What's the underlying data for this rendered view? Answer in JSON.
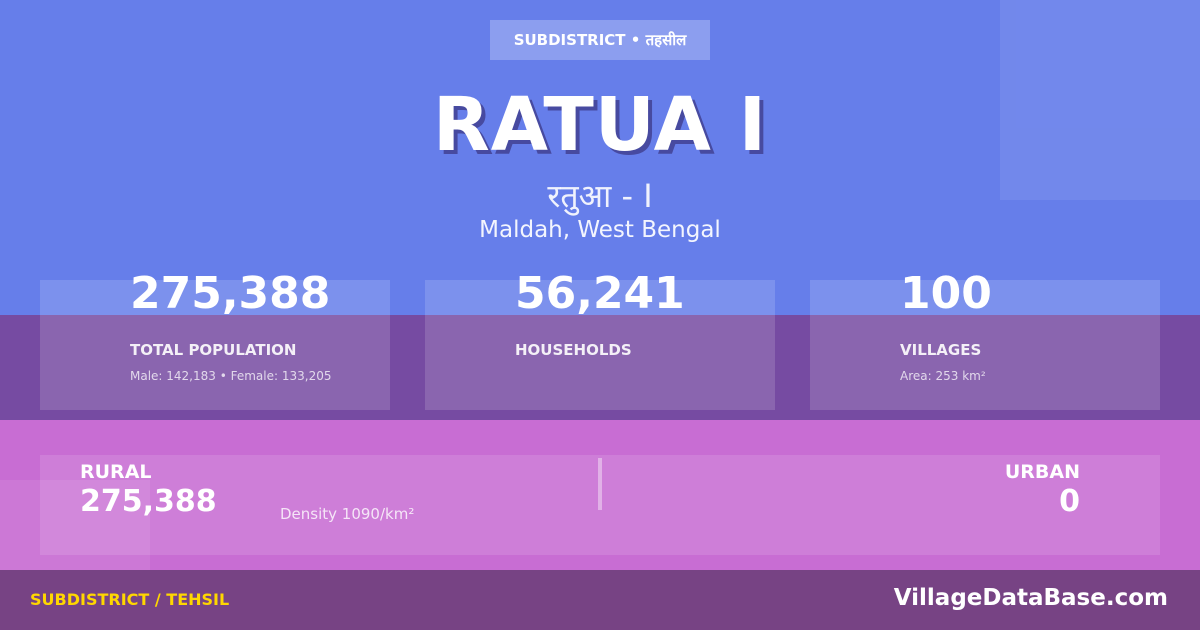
{
  "badge": "SUBDISTRICT • तहसील",
  "title": "RATUA I",
  "hindi_name": "रतुआ - I",
  "location": "Maldah, West Bengal",
  "stats": [
    {
      "value": "275,388",
      "label": "TOTAL POPULATION",
      "sub": "Male: 142,183 • Female: 133,205"
    },
    {
      "value": "56,241",
      "label": "HOUSEHOLDS",
      "sub": ""
    },
    {
      "value": "100",
      "label": "VILLAGES",
      "sub": "Area: 253 km²"
    }
  ],
  "rural": {
    "label": "RURAL",
    "value": "275,388",
    "density": "Density 1090/km²"
  },
  "urban": {
    "label": "URBAN",
    "value": "0"
  },
  "footer": {
    "left": "SUBDISTRICT / TEHSIL",
    "right": "VillageDataBase.com"
  },
  "colors": {
    "top": "#667eea",
    "middle": "#764ba2",
    "lower": "#c86dd3",
    "footer": "#774384",
    "accent": "#ffd700"
  }
}
